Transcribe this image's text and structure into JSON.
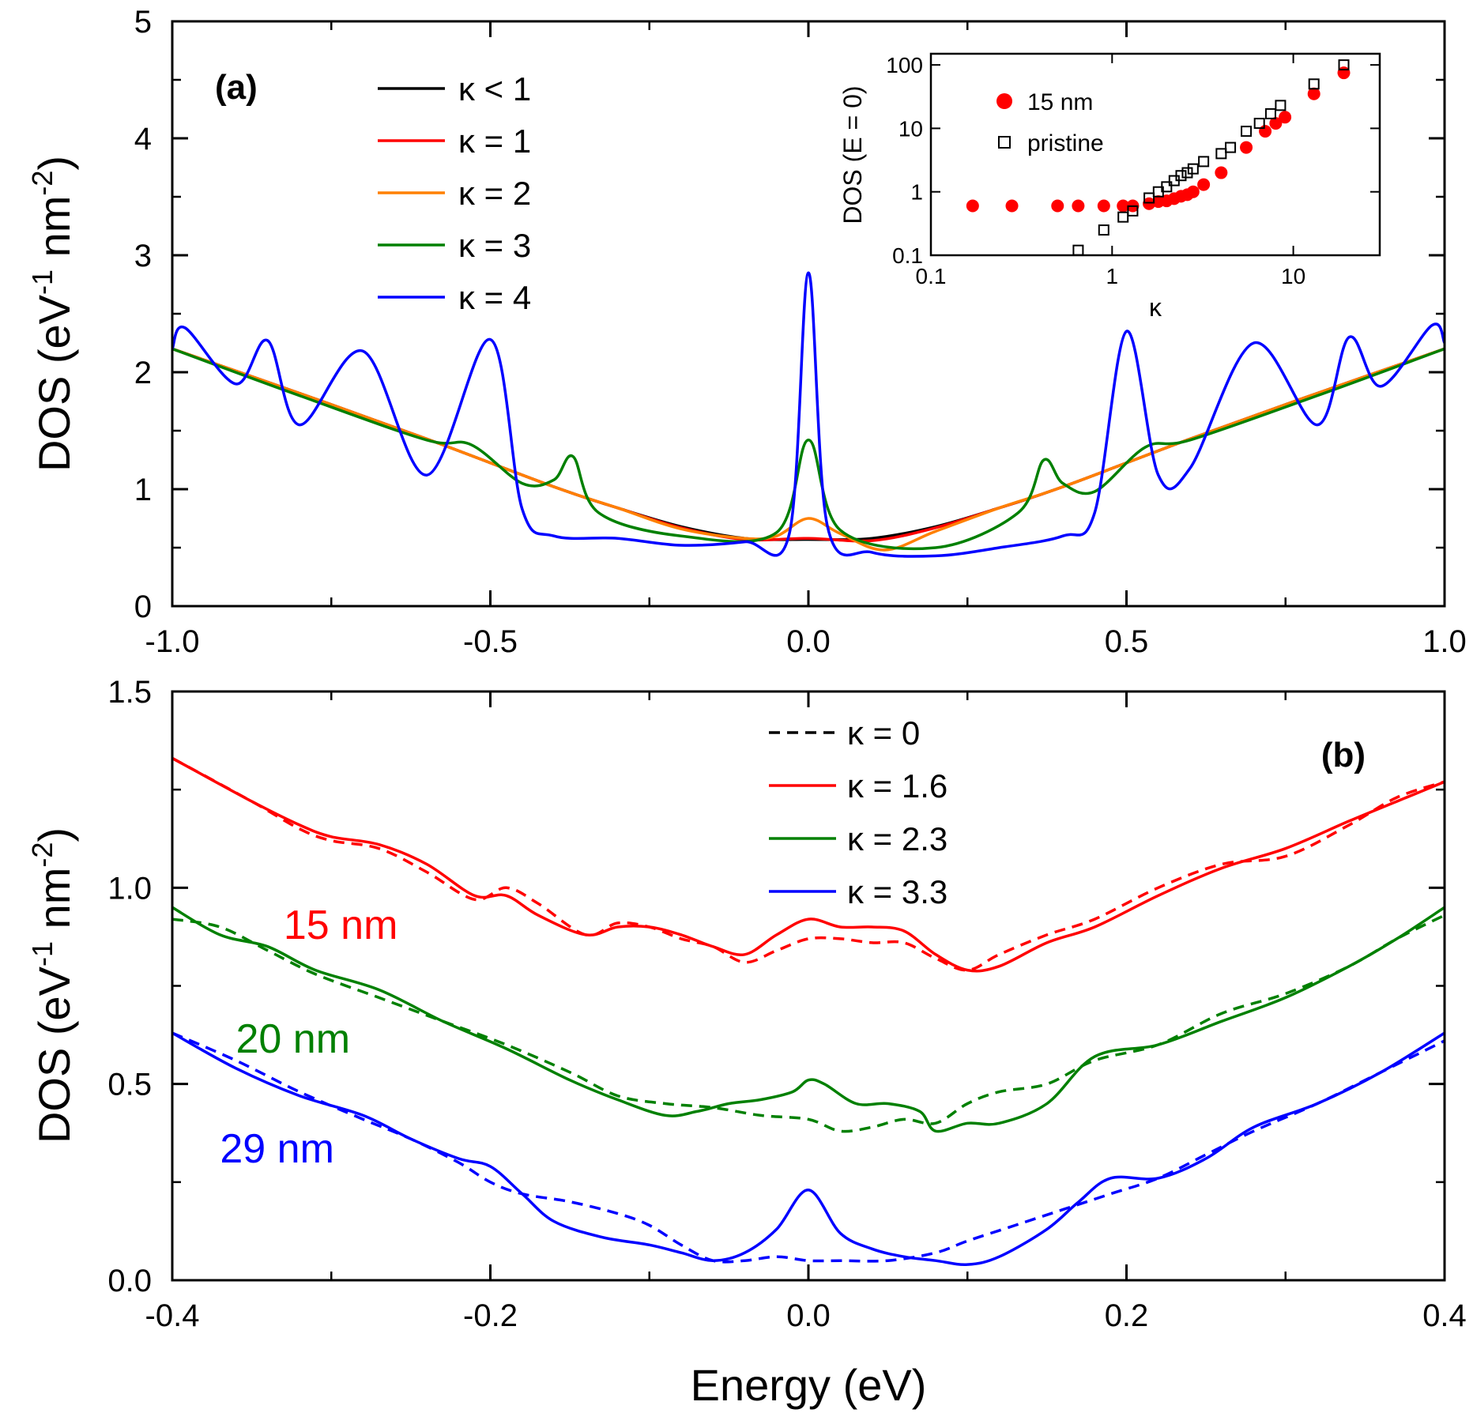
{
  "chart_data": [
    {
      "type": "line",
      "panel_label": "(a)",
      "ylabel": "DOS (eV",
      "ylabel_sup1": "-1",
      "ylabel_mid": " nm",
      "ylabel_sup2": "-2",
      "ylabel_end": ")",
      "xlim": [
        -1.0,
        1.0
      ],
      "ylim": [
        0,
        5
      ],
      "x_ticks": [
        "-1.0",
        "-0.5",
        "0.0",
        "0.5",
        "1.0"
      ],
      "y_ticks": [
        "0",
        "1",
        "2",
        "3",
        "4",
        "5"
      ],
      "legend_position": "top-left",
      "series": [
        {
          "name": "κ < 1",
          "color": "#000000",
          "style": "solid",
          "x": [
            -1.0,
            -0.8,
            -0.6,
            -0.4,
            -0.3,
            -0.2,
            -0.1,
            0.0,
            0.1,
            0.2,
            0.3,
            0.4,
            0.6,
            0.8,
            1.0
          ],
          "y": [
            2.2,
            1.82,
            1.43,
            1.02,
            0.84,
            0.68,
            0.58,
            0.57,
            0.58,
            0.68,
            0.84,
            1.02,
            1.43,
            1.82,
            2.2
          ]
        },
        {
          "name": "κ = 1",
          "color": "#ff0000",
          "style": "solid",
          "x": [
            -1.0,
            -0.8,
            -0.6,
            -0.4,
            -0.3,
            -0.2,
            -0.1,
            0.0,
            0.1,
            0.2,
            0.3,
            0.4,
            0.6,
            0.8,
            1.0
          ],
          "y": [
            2.2,
            1.82,
            1.43,
            1.02,
            0.84,
            0.67,
            0.57,
            0.58,
            0.56,
            0.67,
            0.84,
            1.02,
            1.43,
            1.82,
            2.2
          ]
        },
        {
          "name": "κ = 2",
          "color": "#ff8000",
          "style": "solid",
          "x": [
            -1.0,
            -0.8,
            -0.6,
            -0.4,
            -0.3,
            -0.2,
            -0.1,
            -0.05,
            0.0,
            0.05,
            0.12,
            0.2,
            0.3,
            0.4,
            0.6,
            0.8,
            1.0
          ],
          "y": [
            2.2,
            1.82,
            1.43,
            1.02,
            0.84,
            0.66,
            0.58,
            0.6,
            0.75,
            0.62,
            0.48,
            0.64,
            0.84,
            1.02,
            1.43,
            1.82,
            2.2
          ]
        },
        {
          "name": "κ = 3",
          "color": "#008000",
          "style": "solid",
          "x": [
            -1.0,
            -0.8,
            -0.6,
            -0.53,
            -0.45,
            -0.4,
            -0.37,
            -0.33,
            -0.2,
            -0.05,
            0.0,
            0.05,
            0.2,
            0.33,
            0.37,
            0.4,
            0.45,
            0.53,
            0.6,
            0.8,
            1.0
          ],
          "y": [
            2.2,
            1.8,
            1.42,
            1.38,
            1.05,
            1.08,
            1.28,
            0.8,
            0.6,
            0.63,
            1.42,
            0.65,
            0.5,
            0.8,
            1.25,
            1.05,
            0.98,
            1.36,
            1.42,
            1.8,
            2.2
          ]
        },
        {
          "name": "κ = 4",
          "color": "#0000ff",
          "style": "solid",
          "x": [
            -1.0,
            -0.98,
            -0.9,
            -0.85,
            -0.8,
            -0.7,
            -0.6,
            -0.5,
            -0.45,
            -0.4,
            -0.3,
            -0.2,
            -0.1,
            -0.03,
            0.0,
            0.03,
            0.1,
            0.2,
            0.3,
            0.4,
            0.45,
            0.5,
            0.55,
            0.6,
            0.7,
            0.8,
            0.85,
            0.9,
            0.98,
            1.0
          ],
          "y": [
            2.2,
            2.38,
            1.9,
            2.27,
            1.55,
            2.18,
            1.12,
            2.28,
            0.83,
            0.6,
            0.58,
            0.52,
            0.55,
            0.62,
            2.85,
            0.68,
            0.46,
            0.43,
            0.5,
            0.6,
            0.8,
            2.35,
            1.12,
            1.18,
            2.25,
            1.55,
            2.3,
            1.88,
            2.4,
            2.25
          ]
        }
      ],
      "inset": {
        "type": "scatter",
        "xlabel": "κ",
        "ylabel": "DOS (E = 0)",
        "x_scale": "log",
        "y_scale": "log",
        "xlim": [
          0.1,
          30
        ],
        "ylim": [
          0.1,
          150
        ],
        "x_ticks": [
          "0.1",
          "1",
          "10"
        ],
        "y_ticks": [
          "0.1",
          "1",
          "10",
          "100"
        ],
        "legend_position": "top-left",
        "series": [
          {
            "name": "15 nm",
            "marker": "filled-circle",
            "color": "#ff0000",
            "x": [
              0.17,
              0.28,
              0.5,
              0.65,
              0.9,
              1.15,
              1.3,
              1.6,
              1.8,
              2.0,
              2.2,
              2.4,
              2.6,
              2.8,
              3.2,
              4.0,
              5.5,
              7.0,
              8.0,
              9.0,
              13.0,
              19.0
            ],
            "y": [
              0.6,
              0.6,
              0.6,
              0.6,
              0.6,
              0.6,
              0.6,
              0.65,
              0.7,
              0.72,
              0.78,
              0.85,
              0.9,
              1.0,
              1.3,
              2.0,
              5.0,
              9.0,
              12.0,
              15.0,
              35.0,
              75.0
            ]
          },
          {
            "name": "pristine",
            "marker": "open-square",
            "color": "#000000",
            "x": [
              0.65,
              0.9,
              1.15,
              1.3,
              1.6,
              1.8,
              2.0,
              2.2,
              2.4,
              2.6,
              2.8,
              3.2,
              4.0,
              4.5,
              5.5,
              6.5,
              7.5,
              8.5,
              13.0,
              19.0
            ],
            "y": [
              0.12,
              0.25,
              0.4,
              0.5,
              0.8,
              1.0,
              1.2,
              1.5,
              1.8,
              2.0,
              2.3,
              3.0,
              4.0,
              5.0,
              9.0,
              12.0,
              17.0,
              23.0,
              50.0,
              100.0
            ]
          }
        ]
      }
    },
    {
      "type": "line",
      "panel_label": "(b)",
      "xlabel": "Energy (eV)",
      "ylabel": "DOS (eV",
      "ylabel_sup1": "-1",
      "ylabel_mid": " nm",
      "ylabel_sup2": "-2",
      "ylabel_end": ")",
      "xlim": [
        -0.4,
        0.4
      ],
      "ylim": [
        0.0,
        1.5
      ],
      "x_ticks": [
        "-0.4",
        "-0.2",
        "0.0",
        "0.2",
        "0.4"
      ],
      "y_ticks": [
        "0.0",
        "0.5",
        "1.0",
        "1.5"
      ],
      "legend_position": "top-right",
      "legend": [
        {
          "name": "κ = 0",
          "color": "#000000",
          "style": "dashed"
        },
        {
          "name": "κ = 1.6",
          "color": "#ff0000",
          "style": "solid"
        },
        {
          "name": "κ = 2.3",
          "color": "#008000",
          "style": "solid"
        },
        {
          "name": "κ = 3.3",
          "color": "#0000ff",
          "style": "solid"
        }
      ],
      "annotations": [
        {
          "text": "15 nm",
          "color": "#ff0000",
          "x": -0.33,
          "y": 0.87
        },
        {
          "text": "20 nm",
          "color": "#008000",
          "x": -0.36,
          "y": 0.58
        },
        {
          "text": "29 nm",
          "color": "#0000ff",
          "x": -0.37,
          "y": 0.3
        }
      ],
      "series": [
        {
          "name": "15 nm, κ = 1.6",
          "color": "#ff0000",
          "style": "solid",
          "x": [
            -0.4,
            -0.35,
            -0.32,
            -0.3,
            -0.27,
            -0.24,
            -0.21,
            -0.19,
            -0.17,
            -0.14,
            -0.12,
            -0.1,
            -0.08,
            -0.06,
            -0.04,
            -0.02,
            0.0,
            0.02,
            0.04,
            0.06,
            0.08,
            0.1,
            0.12,
            0.15,
            0.18,
            0.22,
            0.26,
            0.3,
            0.34,
            0.37,
            0.4
          ],
          "y": [
            1.33,
            1.22,
            1.16,
            1.13,
            1.11,
            1.06,
            0.98,
            0.98,
            0.93,
            0.88,
            0.9,
            0.9,
            0.88,
            0.85,
            0.83,
            0.88,
            0.92,
            0.9,
            0.9,
            0.89,
            0.83,
            0.79,
            0.8,
            0.86,
            0.9,
            0.98,
            1.05,
            1.1,
            1.17,
            1.22,
            1.27
          ]
        },
        {
          "name": "15 nm, κ = 0",
          "color": "#ff0000",
          "style": "dashed",
          "x": [
            -0.4,
            -0.35,
            -0.32,
            -0.3,
            -0.27,
            -0.24,
            -0.21,
            -0.19,
            -0.17,
            -0.14,
            -0.12,
            -0.1,
            -0.08,
            -0.06,
            -0.04,
            -0.02,
            0.0,
            0.02,
            0.04,
            0.06,
            0.08,
            0.1,
            0.12,
            0.15,
            0.18,
            0.22,
            0.26,
            0.3,
            0.34,
            0.37,
            0.4
          ],
          "y": [
            1.33,
            1.22,
            1.15,
            1.12,
            1.1,
            1.04,
            0.97,
            1.0,
            0.96,
            0.88,
            0.91,
            0.9,
            0.87,
            0.85,
            0.81,
            0.84,
            0.87,
            0.87,
            0.86,
            0.86,
            0.82,
            0.79,
            0.83,
            0.88,
            0.92,
            1.0,
            1.06,
            1.08,
            1.16,
            1.23,
            1.27
          ]
        },
        {
          "name": "20 nm, κ = 2.3",
          "color": "#008000",
          "style": "solid",
          "x": [
            -0.4,
            -0.37,
            -0.34,
            -0.31,
            -0.27,
            -0.23,
            -0.19,
            -0.15,
            -0.12,
            -0.09,
            -0.07,
            -0.05,
            -0.03,
            -0.01,
            0.0,
            0.01,
            0.03,
            0.05,
            0.07,
            0.08,
            0.1,
            0.12,
            0.15,
            0.18,
            0.22,
            0.26,
            0.3,
            0.34,
            0.37,
            0.4
          ],
          "y": [
            0.95,
            0.88,
            0.85,
            0.79,
            0.74,
            0.66,
            0.59,
            0.51,
            0.46,
            0.42,
            0.43,
            0.45,
            0.46,
            0.48,
            0.51,
            0.5,
            0.45,
            0.45,
            0.43,
            0.38,
            0.4,
            0.4,
            0.45,
            0.57,
            0.6,
            0.66,
            0.72,
            0.8,
            0.87,
            0.95
          ]
        },
        {
          "name": "20 nm, κ = 0",
          "color": "#008000",
          "style": "dashed",
          "x": [
            -0.4,
            -0.37,
            -0.34,
            -0.31,
            -0.27,
            -0.23,
            -0.19,
            -0.15,
            -0.12,
            -0.09,
            -0.06,
            -0.03,
            0.0,
            0.02,
            0.04,
            0.06,
            0.08,
            0.1,
            0.12,
            0.15,
            0.18,
            0.22,
            0.26,
            0.3,
            0.34,
            0.37,
            0.4
          ],
          "y": [
            0.92,
            0.9,
            0.84,
            0.78,
            0.72,
            0.66,
            0.6,
            0.53,
            0.47,
            0.45,
            0.44,
            0.42,
            0.41,
            0.38,
            0.39,
            0.41,
            0.4,
            0.45,
            0.48,
            0.5,
            0.56,
            0.6,
            0.68,
            0.73,
            0.8,
            0.87,
            0.93
          ]
        },
        {
          "name": "29 nm, κ = 3.3",
          "color": "#0000ff",
          "style": "solid",
          "x": [
            -0.4,
            -0.36,
            -0.32,
            -0.28,
            -0.25,
            -0.22,
            -0.2,
            -0.18,
            -0.16,
            -0.13,
            -0.1,
            -0.08,
            -0.06,
            -0.04,
            -0.02,
            0.0,
            0.02,
            0.04,
            0.06,
            0.08,
            0.1,
            0.12,
            0.15,
            0.17,
            0.19,
            0.22,
            0.25,
            0.28,
            0.32,
            0.36,
            0.4
          ],
          "y": [
            0.63,
            0.54,
            0.47,
            0.42,
            0.36,
            0.31,
            0.29,
            0.22,
            0.15,
            0.11,
            0.09,
            0.07,
            0.05,
            0.07,
            0.13,
            0.23,
            0.12,
            0.08,
            0.06,
            0.05,
            0.04,
            0.06,
            0.13,
            0.2,
            0.26,
            0.26,
            0.31,
            0.39,
            0.45,
            0.53,
            0.63
          ]
        },
        {
          "name": "29 nm, κ = 0",
          "color": "#0000ff",
          "style": "dashed",
          "x": [
            -0.4,
            -0.36,
            -0.32,
            -0.28,
            -0.25,
            -0.22,
            -0.2,
            -0.18,
            -0.15,
            -0.12,
            -0.1,
            -0.08,
            -0.06,
            -0.04,
            -0.02,
            0.0,
            0.02,
            0.05,
            0.08,
            0.1,
            0.13,
            0.16,
            0.19,
            0.22,
            0.25,
            0.28,
            0.32,
            0.36,
            0.4
          ],
          "y": [
            0.63,
            0.56,
            0.48,
            0.41,
            0.36,
            0.3,
            0.25,
            0.22,
            0.2,
            0.17,
            0.14,
            0.09,
            0.05,
            0.05,
            0.06,
            0.05,
            0.05,
            0.05,
            0.07,
            0.1,
            0.14,
            0.18,
            0.22,
            0.26,
            0.32,
            0.38,
            0.45,
            0.53,
            0.61
          ]
        }
      ]
    }
  ]
}
